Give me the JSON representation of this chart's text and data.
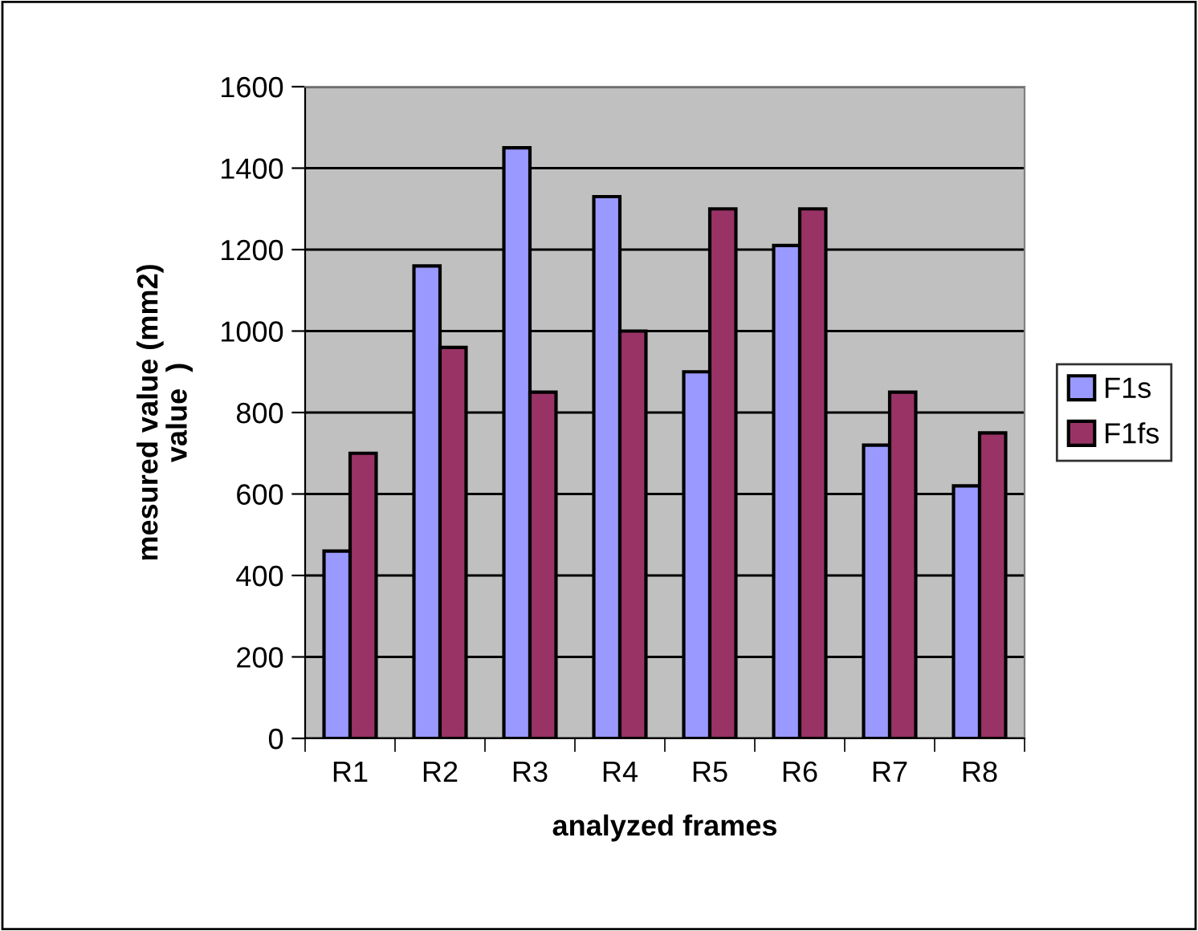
{
  "chart_data": {
    "type": "bar",
    "xlabel": "analyzed frames",
    "ylabel": "mesured value (mm2)\nvalue  )",
    "categories": [
      "R1",
      "R2",
      "R3",
      "R4",
      "R5",
      "R6",
      "R7",
      "R8"
    ],
    "series": [
      {
        "name": "F1s",
        "color": "#9999ff",
        "values": [
          460,
          1160,
          1450,
          1330,
          900,
          1210,
          720,
          620
        ]
      },
      {
        "name": "F1fs",
        "color": "#993366",
        "values": [
          700,
          960,
          850,
          1000,
          1300,
          1300,
          850,
          750
        ]
      }
    ],
    "ylim": [
      0,
      1600
    ],
    "yticks": [
      0,
      200,
      400,
      600,
      800,
      1000,
      1200,
      1400,
      1600
    ],
    "grid": "y",
    "legend": "right"
  }
}
